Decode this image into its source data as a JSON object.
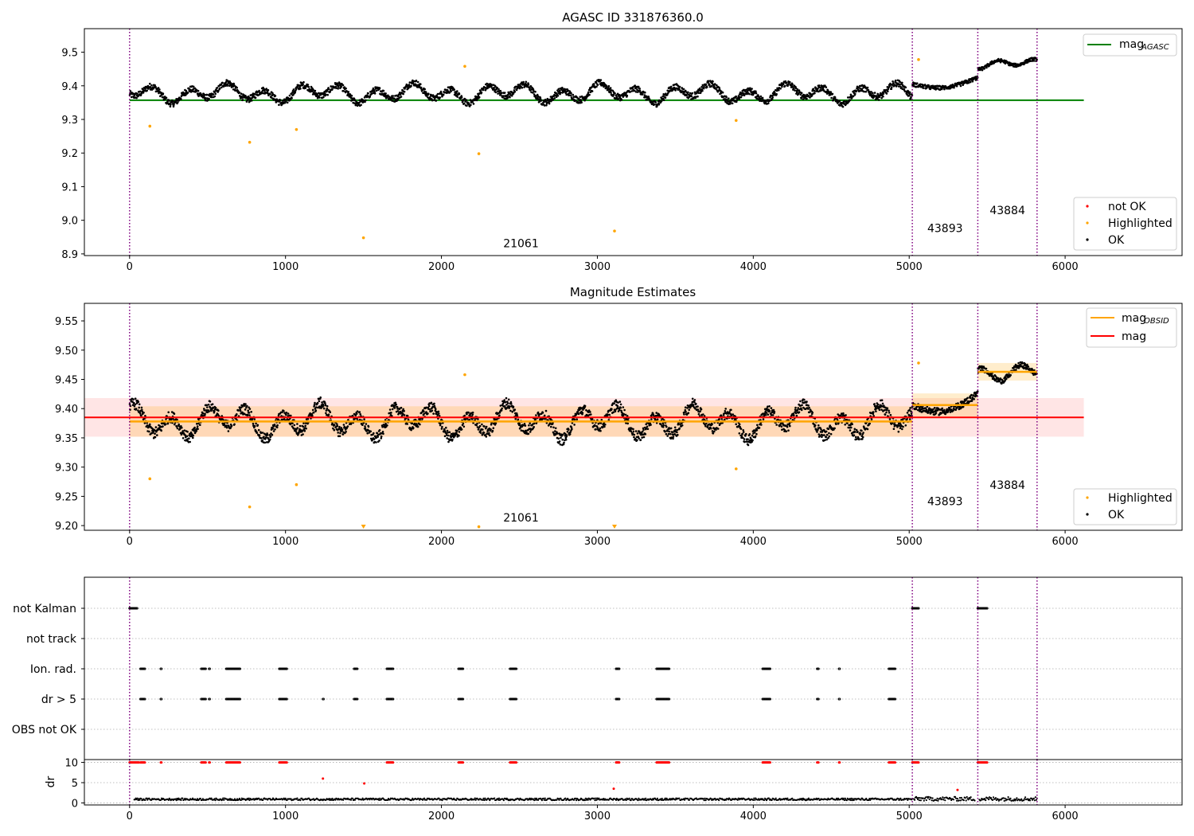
{
  "chart_data": [
    {
      "type": "scatter",
      "title": "AGASC ID 331876360.0",
      "xlim": [
        -290,
        6750
      ],
      "ylim": [
        8.895,
        9.57
      ],
      "xticks": [
        0,
        1000,
        2000,
        3000,
        4000,
        5000,
        6000
      ],
      "yticks": [
        8.9,
        9.0,
        9.1,
        9.2,
        9.3,
        9.4,
        9.5
      ],
      "ytick_labels": [
        "8.9",
        "9.0",
        "9.1",
        "9.2",
        "9.3",
        "9.4",
        "9.5"
      ],
      "obsid_boundaries": [
        0,
        5020,
        5440,
        5820
      ],
      "obsid_labels": [
        {
          "text": "21061",
          "x": 2510,
          "y": 8.92
        },
        {
          "text": "43893",
          "x": 5230,
          "y": 8.965
        },
        {
          "text": "43884",
          "x": 5630,
          "y": 9.018
        }
      ],
      "mag_agasc": {
        "value": 9.357,
        "x_range": [
          0,
          6120
        ]
      },
      "segments": [
        {
          "x_range": [
            0,
            5020
          ],
          "base": 9.378,
          "amp": 0.035
        },
        {
          "x_range": [
            5020,
            5440
          ],
          "base": 9.405,
          "amp": 0.03
        },
        {
          "x_range": [
            5440,
            5820
          ],
          "base": 9.465,
          "amp": 0.018
        }
      ],
      "highlighted_points": [
        {
          "x": 130,
          "y": 9.28
        },
        {
          "x": 770,
          "y": 9.232
        },
        {
          "x": 1070,
          "y": 9.27
        },
        {
          "x": 1500,
          "y": 8.948
        },
        {
          "x": 2150,
          "y": 9.458
        },
        {
          "x": 2240,
          "y": 9.198
        },
        {
          "x": 3110,
          "y": 8.968
        },
        {
          "x": 3890,
          "y": 9.297
        },
        {
          "x": 5060,
          "y": 9.478
        }
      ],
      "legend_top": [
        {
          "label": "mag",
          "sub": "AGASC",
          "color": "#008000"
        }
      ],
      "legend_bottom": [
        {
          "label": "not OK",
          "color": "#ff0000"
        },
        {
          "label": "Highlighted",
          "color": "#ffa500"
        },
        {
          "label": "OK",
          "color": "#000000"
        }
      ]
    },
    {
      "type": "scatter",
      "title": "Magnitude Estimates",
      "xlim": [
        -290,
        6750
      ],
      "ylim": [
        9.192,
        9.58
      ],
      "xticks": [
        0,
        1000,
        2000,
        3000,
        4000,
        5000,
        6000
      ],
      "yticks": [
        9.2,
        9.25,
        9.3,
        9.35,
        9.4,
        9.45,
        9.5,
        9.55
      ],
      "ytick_labels": [
        "9.20",
        "9.25",
        "9.30",
        "9.35",
        "9.40",
        "9.45",
        "9.50",
        "9.55"
      ],
      "obsid_boundaries": [
        0,
        5020,
        5440,
        5820
      ],
      "obsid_labels": [
        {
          "text": "21061",
          "x": 2510,
          "y": 9.207
        },
        {
          "text": "43893",
          "x": 5230,
          "y": 9.235
        },
        {
          "text": "43884",
          "x": 5630,
          "y": 9.263
        }
      ],
      "mag": {
        "value": 9.385,
        "band": [
          9.352,
          9.418
        ],
        "x_range": [
          -290,
          6120
        ]
      },
      "mag_obsid": [
        {
          "x_range": [
            0,
            5020
          ],
          "value": 9.378,
          "band": [
            9.352,
            9.404
          ]
        },
        {
          "x_range": [
            5020,
            5440
          ],
          "value": 9.406,
          "band": [
            9.386,
            9.426
          ]
        },
        {
          "x_range": [
            5440,
            5820
          ],
          "value": 9.463,
          "band": [
            9.448,
            9.478
          ]
        }
      ],
      "highlighted_points": [
        {
          "x": 130,
          "y": 9.28
        },
        {
          "x": 770,
          "y": 9.232
        },
        {
          "x": 1070,
          "y": 9.27
        },
        {
          "x": 2150,
          "y": 9.458
        },
        {
          "x": 2240,
          "y": 9.198
        },
        {
          "x": 3890,
          "y": 9.297
        },
        {
          "x": 5060,
          "y": 9.478
        }
      ],
      "below_range_markers": [
        1500,
        3110
      ],
      "legend_top": [
        {
          "label": "mag",
          "sub": "OBSID",
          "color": "#ffa500"
        },
        {
          "label": "mag",
          "sub": "",
          "color": "#ff0000"
        }
      ],
      "legend_bottom": [
        {
          "label": "Highlighted",
          "color": "#ffa500"
        },
        {
          "label": "OK",
          "color": "#000000"
        }
      ]
    },
    {
      "type": "scatter",
      "title": "",
      "xlim": [
        -290,
        6750
      ],
      "xticks": [
        0,
        1000,
        2000,
        3000,
        4000,
        5000,
        6000
      ],
      "flag_rows": [
        "not Kalman",
        "not track",
        "Ion. rad.",
        "dr > 5",
        "OBS not OK"
      ],
      "obsid_boundaries": [
        0,
        5020,
        5440,
        5820
      ],
      "flag_clusters": {
        "not Kalman": [
          [
            0,
            50
          ],
          [
            5020,
            5060
          ],
          [
            5440,
            5500
          ]
        ],
        "not track": [],
        "Ion. rad.": [
          [
            70,
            100
          ],
          [
            200,
            205
          ],
          [
            460,
            490
          ],
          [
            510,
            515
          ],
          [
            620,
            710
          ],
          [
            960,
            1010
          ],
          [
            1440,
            1460
          ],
          [
            1650,
            1690
          ],
          [
            2110,
            2140
          ],
          [
            2440,
            2480
          ],
          [
            3120,
            3140
          ],
          [
            3380,
            3460
          ],
          [
            4060,
            4110
          ],
          [
            4410,
            4420
          ],
          [
            4550,
            4555
          ],
          [
            4870,
            4910
          ]
        ],
        "dr > 5": [
          [
            70,
            100
          ],
          [
            200,
            205
          ],
          [
            460,
            490
          ],
          [
            510,
            515
          ],
          [
            620,
            710
          ],
          [
            960,
            1010
          ],
          [
            1240,
            1245
          ],
          [
            1440,
            1460
          ],
          [
            1650,
            1690
          ],
          [
            2110,
            2140
          ],
          [
            2440,
            2480
          ],
          [
            3120,
            3140
          ],
          [
            3380,
            3460
          ],
          [
            4060,
            4110
          ],
          [
            4410,
            4420
          ],
          [
            4550,
            4555
          ],
          [
            4870,
            4910
          ]
        ],
        "OBS not OK": []
      },
      "dr": {
        "ylabel": "dr",
        "yticks": [
          0,
          5,
          10
        ],
        "ytick_labels": [
          "0",
          "5",
          "10"
        ],
        "ylim": [
          -0.5,
          10.7
        ],
        "clip_value": 10,
        "clipped_ranges": [
          [
            0,
            60
          ],
          [
            70,
            100
          ],
          [
            200,
            205
          ],
          [
            460,
            490
          ],
          [
            510,
            515
          ],
          [
            620,
            710
          ],
          [
            960,
            1010
          ],
          [
            1650,
            1690
          ],
          [
            2110,
            2140
          ],
          [
            2440,
            2480
          ],
          [
            3120,
            3140
          ],
          [
            3380,
            3460
          ],
          [
            4060,
            4110
          ],
          [
            4410,
            4420
          ],
          [
            4550,
            4555
          ],
          [
            4870,
            4910
          ],
          [
            5020,
            5060
          ],
          [
            5440,
            5500
          ]
        ],
        "outliers": [
          {
            "x": 1240,
            "y": 6.0
          },
          {
            "x": 1505,
            "y": 4.8
          },
          {
            "x": 3105,
            "y": 3.5
          },
          {
            "x": 5310,
            "y": 3.2
          }
        ],
        "baseline": 0.8
      }
    }
  ]
}
